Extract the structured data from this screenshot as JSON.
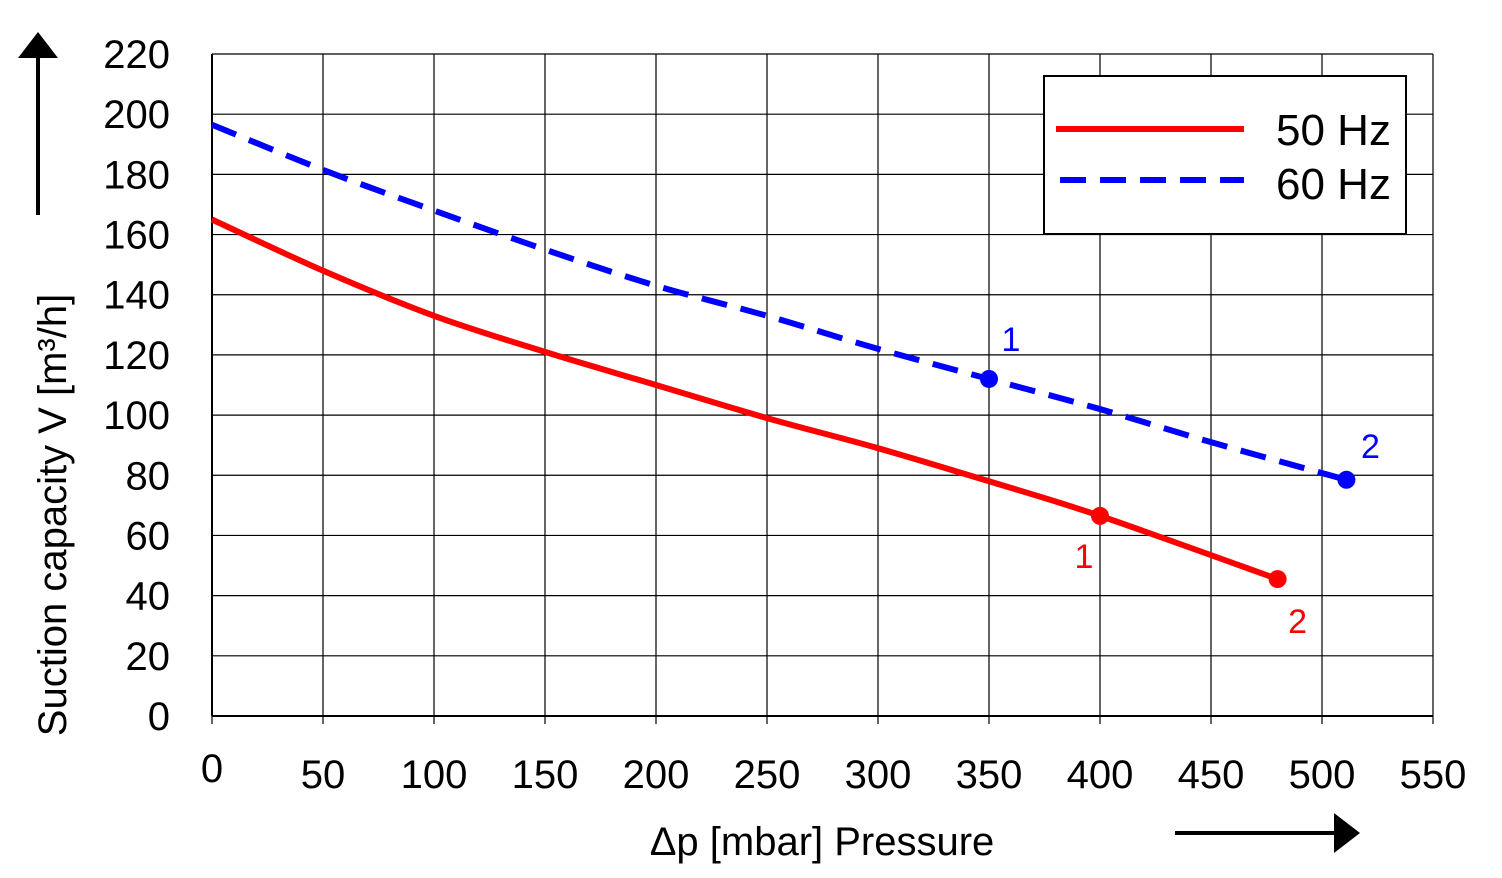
{
  "chart_data": {
    "type": "line",
    "title": "",
    "xlabel": "Δp [mbar] Pressure",
    "ylabel": "Suction capacity V  [m³/h]",
    "xlim": [
      0,
      550
    ],
    "ylim": [
      0,
      220
    ],
    "xticks": [
      0,
      50,
      100,
      150,
      200,
      250,
      300,
      350,
      400,
      450,
      500,
      550
    ],
    "yticks": [
      0,
      20,
      40,
      60,
      80,
      100,
      120,
      140,
      160,
      180,
      200,
      220
    ],
    "grid": true,
    "legend_position": "top-right",
    "series": [
      {
        "name": "50 Hz",
        "color": "#ff0000",
        "style": "solid",
        "x": [
          0,
          50,
          100,
          150,
          200,
          250,
          300,
          350,
          400,
          480
        ],
        "y": [
          165,
          148,
          133,
          121,
          110,
          99,
          89,
          78,
          66.5,
          45.5
        ],
        "markers": [
          {
            "x": 400,
            "y": 66.5,
            "label": "1"
          },
          {
            "x": 480,
            "y": 45.5,
            "label": "2"
          }
        ]
      },
      {
        "name": "60 Hz",
        "color": "#0000ff",
        "style": "dashed",
        "x": [
          0,
          50,
          100,
          150,
          200,
          250,
          300,
          350,
          400,
          450,
          511
        ],
        "y": [
          196.5,
          181.5,
          168,
          155,
          143,
          133,
          122,
          112,
          102,
          91,
          78.5
        ],
        "markers": [
          {
            "x": 350,
            "y": 112,
            "label": "1"
          },
          {
            "x": 511,
            "y": 78.5,
            "label": "2"
          }
        ]
      }
    ]
  }
}
